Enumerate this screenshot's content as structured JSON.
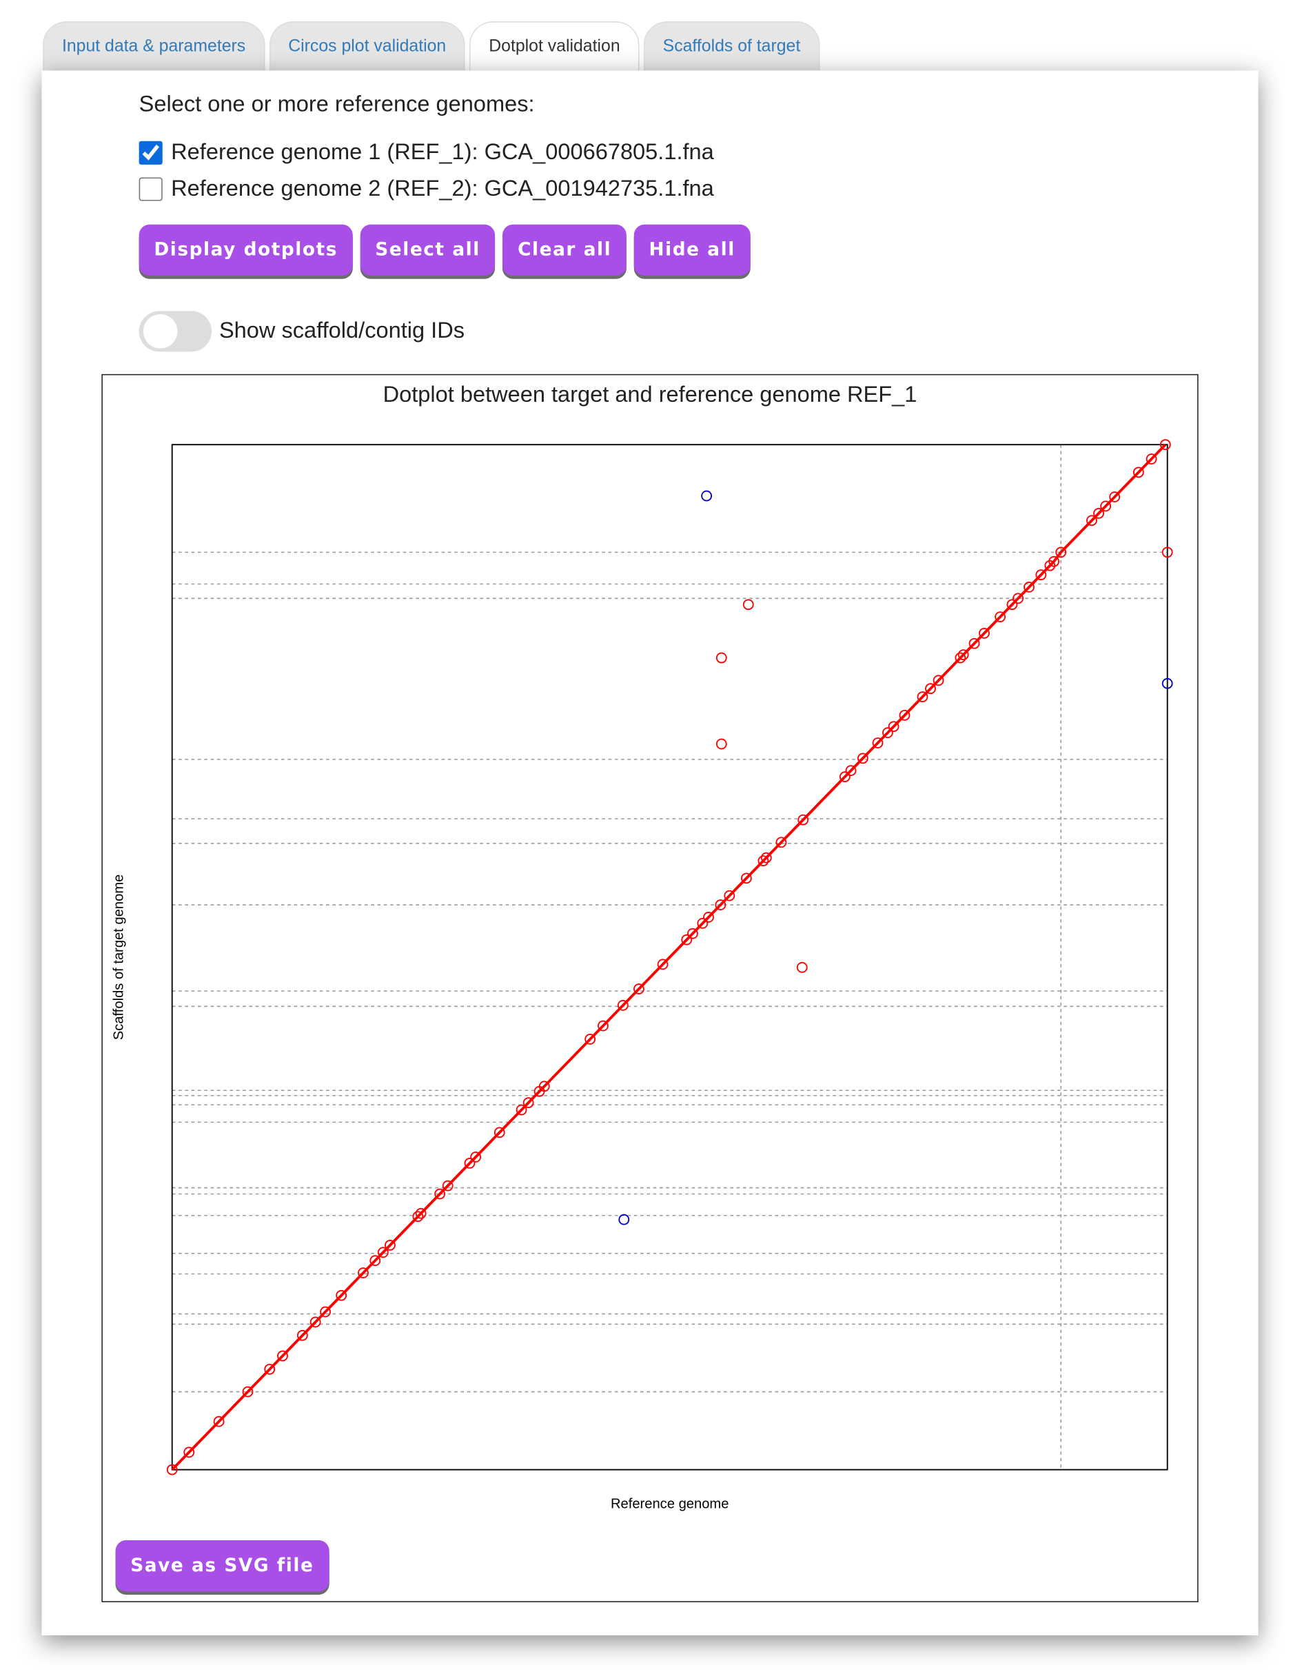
{
  "tabs": [
    "Input data & parameters",
    "Circos plot validation",
    "Dotplot validation",
    "Scaffolds of target"
  ],
  "active_tab": 2,
  "prompt": "Select one or more reference genomes:",
  "references": [
    {
      "label": "Reference genome 1 (REF_1): GCA_000667805.1.fna",
      "checked": true
    },
    {
      "label": "Reference genome 2 (REF_2): GCA_001942735.1.fna",
      "checked": false
    }
  ],
  "buttons": [
    "Display dotplots",
    "Select all",
    "Clear all",
    "Hide all"
  ],
  "toggle": {
    "label": "Show scaffold/contig IDs",
    "on": false
  },
  "chart_data": {
    "type": "scatter",
    "title": "Dotplot between target and reference genome REF_1",
    "x_label": "Reference genome",
    "y_label": "Scaffolds of target genome",
    "xlim": [
      0,
      100
    ],
    "ylim": [
      0,
      100
    ],
    "hlines": [
      89.5,
      86.4,
      85.0,
      69.3,
      63.5,
      61.1,
      55.1,
      46.7,
      45.2,
      37.0,
      36.5,
      35.6,
      33.9,
      27.5,
      26.9,
      24.8,
      21.1,
      19.1,
      15.2,
      14.2,
      7.6
    ],
    "vlines": [
      89.3
    ],
    "series": [
      {
        "color": "#ff0000",
        "line": true,
        "x": [
          0,
          1.7,
          4.7,
          7.6,
          9.8,
          11.1,
          13.1,
          14.4,
          15.4,
          17.0,
          19.2,
          20.4,
          21.2,
          21.9,
          24.7,
          25.0,
          26.9,
          27.7,
          29.9,
          30.5,
          32.9,
          35.1,
          35.8,
          36.9,
          37.4,
          42.0,
          43.3,
          45.3,
          46.9,
          49.3,
          51.7,
          52.3,
          53.3,
          53.9,
          55.1,
          56.0,
          57.7,
          59.4,
          59.7,
          61.2,
          63.4,
          67.6,
          68.2,
          69.4,
          70.9,
          71.9,
          72.5,
          73.6,
          75.4,
          76.2,
          77.0,
          79.2,
          79.5,
          80.6,
          81.6,
          83.2,
          84.4,
          85.0,
          86.1,
          87.3,
          88.2,
          88.6,
          89.3,
          92.4,
          93.1,
          93.8,
          94.7,
          97.1,
          98.4,
          99.8
        ],
        "values": [
          0,
          1.7,
          4.7,
          7.6,
          9.8,
          11.1,
          13.1,
          14.4,
          15.4,
          17.0,
          19.2,
          20.4,
          21.2,
          21.9,
          24.7,
          25.0,
          26.9,
          27.7,
          29.9,
          30.5,
          32.9,
          35.1,
          35.8,
          36.9,
          37.4,
          42.0,
          43.3,
          45.3,
          46.9,
          49.3,
          51.7,
          52.3,
          53.3,
          53.9,
          55.1,
          56.0,
          57.7,
          59.4,
          59.7,
          61.2,
          63.4,
          67.6,
          68.2,
          69.4,
          70.9,
          71.9,
          72.5,
          73.6,
          75.4,
          76.2,
          77.0,
          79.2,
          79.5,
          80.6,
          81.6,
          83.2,
          84.4,
          85.0,
          86.1,
          87.3,
          88.2,
          88.6,
          89.5,
          92.6,
          93.3,
          94.0,
          94.9,
          97.3,
          98.6,
          100
        ]
      },
      {
        "color": "#ff0000",
        "line": false,
        "x": [
          57.9,
          55.2,
          55.2,
          63.3,
          100
        ],
        "values": [
          84.4,
          79.2,
          70.8,
          49.0,
          89.5
        ]
      },
      {
        "color": "#0000cc",
        "line": false,
        "x": [
          53.7,
          100,
          45.4
        ],
        "values": [
          95.0,
          76.7,
          24.4
        ]
      }
    ]
  },
  "save_button": "Save as SVG file"
}
